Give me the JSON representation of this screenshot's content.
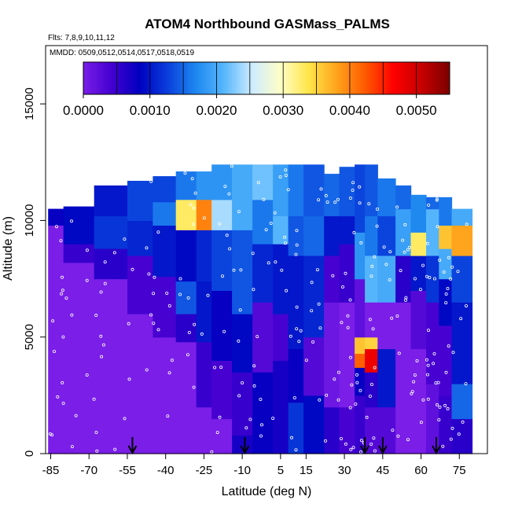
{
  "chart_data": {
    "type": "heatmap",
    "title": "ATOM4 Northbound GASMass_PALMS",
    "flights_label": "Flts: 7,8,9,10,11,12",
    "dates_label": "MMDD: 0509,0512,0514,0517,0518,0519",
    "xlabel": "Latitude (deg N)",
    "ylabel": "Altitude (m)",
    "xlim": [
      -87,
      86
    ],
    "ylim": [
      0,
      17500
    ],
    "x_ticks": [
      -85,
      -70,
      -55,
      -40,
      -25,
      -10,
      5,
      15,
      30,
      45,
      60,
      75
    ],
    "y_ticks": [
      0,
      5000,
      10000,
      15000
    ],
    "colorbar": {
      "range": [
        0,
        0.0055
      ],
      "ticks": [
        "0.0000",
        "0.0010",
        "0.0020",
        "0.0030",
        "0.0040",
        "0.0050"
      ],
      "tick_values": [
        0,
        0.001,
        0.002,
        0.003,
        0.004,
        0.005
      ],
      "colors": [
        "#7a1ee8",
        "#4400d0",
        "#0000c0",
        "#0a3fdc",
        "#1e88f0",
        "#57b7fc",
        "#cfecff",
        "#fefec6",
        "#ffe54a",
        "#ffa31b",
        "#ff5a00",
        "#ff0000",
        "#c80000",
        "#7a0000"
      ]
    },
    "profile_markers_lat": [
      -53,
      -9,
      38,
      45,
      66
    ],
    "columns": [
      {
        "lat0": -86,
        "lat1": -80,
        "top": 10500,
        "bands": [
          [
            0,
            9800,
            0.0
          ],
          [
            9800,
            10500,
            0.0008
          ]
        ]
      },
      {
        "lat0": -80,
        "lat1": -68,
        "top": 10600,
        "bands": [
          [
            0,
            8200,
            0.0
          ],
          [
            8200,
            9000,
            0.0005
          ],
          [
            9000,
            10600,
            0.0009
          ]
        ]
      },
      {
        "lat0": -68,
        "lat1": -55,
        "top": 11500,
        "bands": [
          [
            0,
            7500,
            0.0
          ],
          [
            7500,
            8800,
            0.0006
          ],
          [
            8800,
            10200,
            0.0012
          ],
          [
            10200,
            11500,
            0.001
          ]
        ]
      },
      {
        "lat0": -55,
        "lat1": -45,
        "top": 11700,
        "bands": [
          [
            0,
            6000,
            0.0
          ],
          [
            6000,
            8500,
            0.0004
          ],
          [
            8500,
            10000,
            0.0011
          ],
          [
            10000,
            11700,
            0.0013
          ]
        ]
      },
      {
        "lat0": -45,
        "lat1": -36,
        "top": 11900,
        "bands": [
          [
            0,
            5000,
            0.0
          ],
          [
            5000,
            7600,
            0.0004
          ],
          [
            7600,
            9800,
            0.001
          ],
          [
            9800,
            10800,
            0.0016
          ],
          [
            10800,
            11900,
            0.0013
          ]
        ]
      },
      {
        "lat0": -36,
        "lat1": -28,
        "top": 12100,
        "bands": [
          [
            0,
            4800,
            0.0
          ],
          [
            4800,
            6000,
            0.0006
          ],
          [
            6000,
            7400,
            0.0014
          ],
          [
            7400,
            9600,
            0.0009
          ],
          [
            9600,
            10900,
            0.0033
          ],
          [
            10900,
            12100,
            0.0016
          ]
        ]
      },
      {
        "lat0": -28,
        "lat1": -22,
        "top": 12100,
        "bands": [
          [
            0,
            2000,
            0.0
          ],
          [
            2000,
            4800,
            0.0005
          ],
          [
            4800,
            7400,
            0.001
          ],
          [
            7400,
            9600,
            0.0011
          ],
          [
            9600,
            10900,
            0.004
          ],
          [
            10900,
            12100,
            0.0018
          ]
        ]
      },
      {
        "lat0": -22,
        "lat1": -14,
        "top": 12400,
        "bands": [
          [
            0,
            1500,
            0.0
          ],
          [
            1500,
            4000,
            0.0004
          ],
          [
            4000,
            7000,
            0.0008
          ],
          [
            7000,
            9600,
            0.0013
          ],
          [
            9600,
            10900,
            0.0024
          ],
          [
            10900,
            12400,
            0.0018
          ]
        ]
      },
      {
        "lat0": -14,
        "lat1": -6,
        "top": 12400,
        "bands": [
          [
            0,
            800,
            0.0007
          ],
          [
            800,
            3500,
            0.0005
          ],
          [
            3500,
            6000,
            0.0009
          ],
          [
            6000,
            9600,
            0.0014
          ],
          [
            9600,
            10900,
            0.002
          ],
          [
            10900,
            12400,
            0.002
          ]
        ]
      },
      {
        "lat0": -6,
        "lat1": 2,
        "top": 12400,
        "bands": [
          [
            0,
            3500,
            0.0008
          ],
          [
            3500,
            6500,
            0.0003
          ],
          [
            6500,
            9000,
            0.0011
          ],
          [
            9000,
            10900,
            0.0016
          ],
          [
            10900,
            12400,
            0.0022
          ]
        ]
      },
      {
        "lat0": 2,
        "lat1": 8,
        "top": 12400,
        "bands": [
          [
            0,
            4000,
            0.0007
          ],
          [
            4000,
            6000,
            0.0004
          ],
          [
            6000,
            9000,
            0.001
          ],
          [
            9000,
            10200,
            0.0021
          ],
          [
            10200,
            12400,
            0.0019
          ]
        ]
      },
      {
        "lat0": 8,
        "lat1": 14,
        "top": 12400,
        "bands": [
          [
            0,
            2200,
            0.0012
          ],
          [
            2200,
            4500,
            0.0008
          ],
          [
            4500,
            8500,
            0.001
          ],
          [
            8500,
            10200,
            0.0014
          ],
          [
            10200,
            12400,
            0.0016
          ]
        ]
      },
      {
        "lat0": 14,
        "lat1": 22,
        "top": 12400,
        "bands": [
          [
            0,
            2500,
            0.0009
          ],
          [
            2500,
            5000,
            0.0003
          ],
          [
            5000,
            8500,
            0.0011
          ],
          [
            8500,
            10200,
            0.0015
          ],
          [
            10200,
            12400,
            0.0014
          ]
        ]
      },
      {
        "lat0": 22,
        "lat1": 28,
        "top": 12000,
        "bands": [
          [
            0,
            2000,
            0.0006
          ],
          [
            2000,
            6500,
            0.0001
          ],
          [
            6500,
            8500,
            0.0004
          ],
          [
            8500,
            10200,
            0.001
          ],
          [
            10200,
            12000,
            0.0015
          ]
        ]
      },
      {
        "lat0": 28,
        "lat1": 34,
        "top": 12300,
        "bands": [
          [
            0,
            2000,
            0.0004
          ],
          [
            2000,
            6500,
            0.0
          ],
          [
            6500,
            9000,
            0.0005
          ],
          [
            9000,
            10200,
            0.001
          ],
          [
            10200,
            12300,
            0.0014
          ]
        ]
      },
      {
        "lat0": 34,
        "lat1": 38,
        "top": 12400,
        "bands": [
          [
            0,
            2500,
            0.0005
          ],
          [
            2500,
            3700,
            0.0008
          ],
          [
            3700,
            4300,
            0.0042
          ],
          [
            4300,
            5000,
            0.0036
          ],
          [
            5000,
            7500,
            0.0002
          ],
          [
            7500,
            9500,
            0.0018
          ],
          [
            9500,
            12400,
            0.0013
          ]
        ]
      },
      {
        "lat0": 38,
        "lat1": 43,
        "top": 12400,
        "bands": [
          [
            0,
            2000,
            0.0003
          ],
          [
            2000,
            3500,
            0.0006
          ],
          [
            3500,
            4500,
            0.0048
          ],
          [
            4500,
            5000,
            0.0035
          ],
          [
            5000,
            6500,
            0.0
          ],
          [
            6500,
            8500,
            0.0021
          ],
          [
            8500,
            10200,
            0.0016
          ],
          [
            10200,
            12400,
            0.0014
          ]
        ]
      },
      {
        "lat0": 43,
        "lat1": 50,
        "top": 11800,
        "bands": [
          [
            0,
            2000,
            0.0003
          ],
          [
            2000,
            4500,
            0.001
          ],
          [
            4500,
            6500,
            0.0
          ],
          [
            6500,
            8500,
            0.002
          ],
          [
            8500,
            10200,
            0.0013
          ],
          [
            10200,
            11800,
            0.0016
          ]
        ]
      },
      {
        "lat0": 50,
        "lat1": 56,
        "top": 11500,
        "bands": [
          [
            0,
            3000,
            0.0
          ],
          [
            3000,
            6500,
            0.0
          ],
          [
            6500,
            8500,
            0.0006
          ],
          [
            8500,
            10500,
            0.0019
          ],
          [
            10500,
            11500,
            0.0015
          ]
        ]
      },
      {
        "lat0": 56,
        "lat1": 62,
        "top": 11100,
        "bands": [
          [
            0,
            4500,
            0.0
          ],
          [
            4500,
            7000,
            0.0003
          ],
          [
            7000,
            8500,
            0.001
          ],
          [
            8500,
            9500,
            0.0033
          ],
          [
            9500,
            11100,
            0.0017
          ]
        ]
      },
      {
        "lat0": 62,
        "lat1": 67,
        "top": 11000,
        "bands": [
          [
            0,
            3000,
            0.0002
          ],
          [
            3000,
            6500,
            0.0004
          ],
          [
            6500,
            8500,
            0.0012
          ],
          [
            8500,
            10500,
            0.0021
          ],
          [
            10500,
            11000,
            0.0015
          ]
        ]
      },
      {
        "lat0": 67,
        "lat1": 72,
        "top": 11000,
        "bands": [
          [
            0,
            2500,
            0.0005
          ],
          [
            2500,
            5500,
            0.0004
          ],
          [
            5500,
            7500,
            0.0009
          ],
          [
            7500,
            8800,
            0.002
          ],
          [
            8800,
            9800,
            0.0036
          ],
          [
            9800,
            11000,
            0.0016
          ]
        ]
      },
      {
        "lat0": 72,
        "lat1": 80,
        "top": 10500,
        "bands": [
          [
            0,
            1500,
            0.0006
          ],
          [
            1500,
            3000,
            0.0015
          ],
          [
            3000,
            6500,
            0.001
          ],
          [
            6500,
            8500,
            0.0013
          ],
          [
            8500,
            9800,
            0.0038
          ],
          [
            9800,
            10500,
            0.002
          ]
        ]
      }
    ]
  }
}
